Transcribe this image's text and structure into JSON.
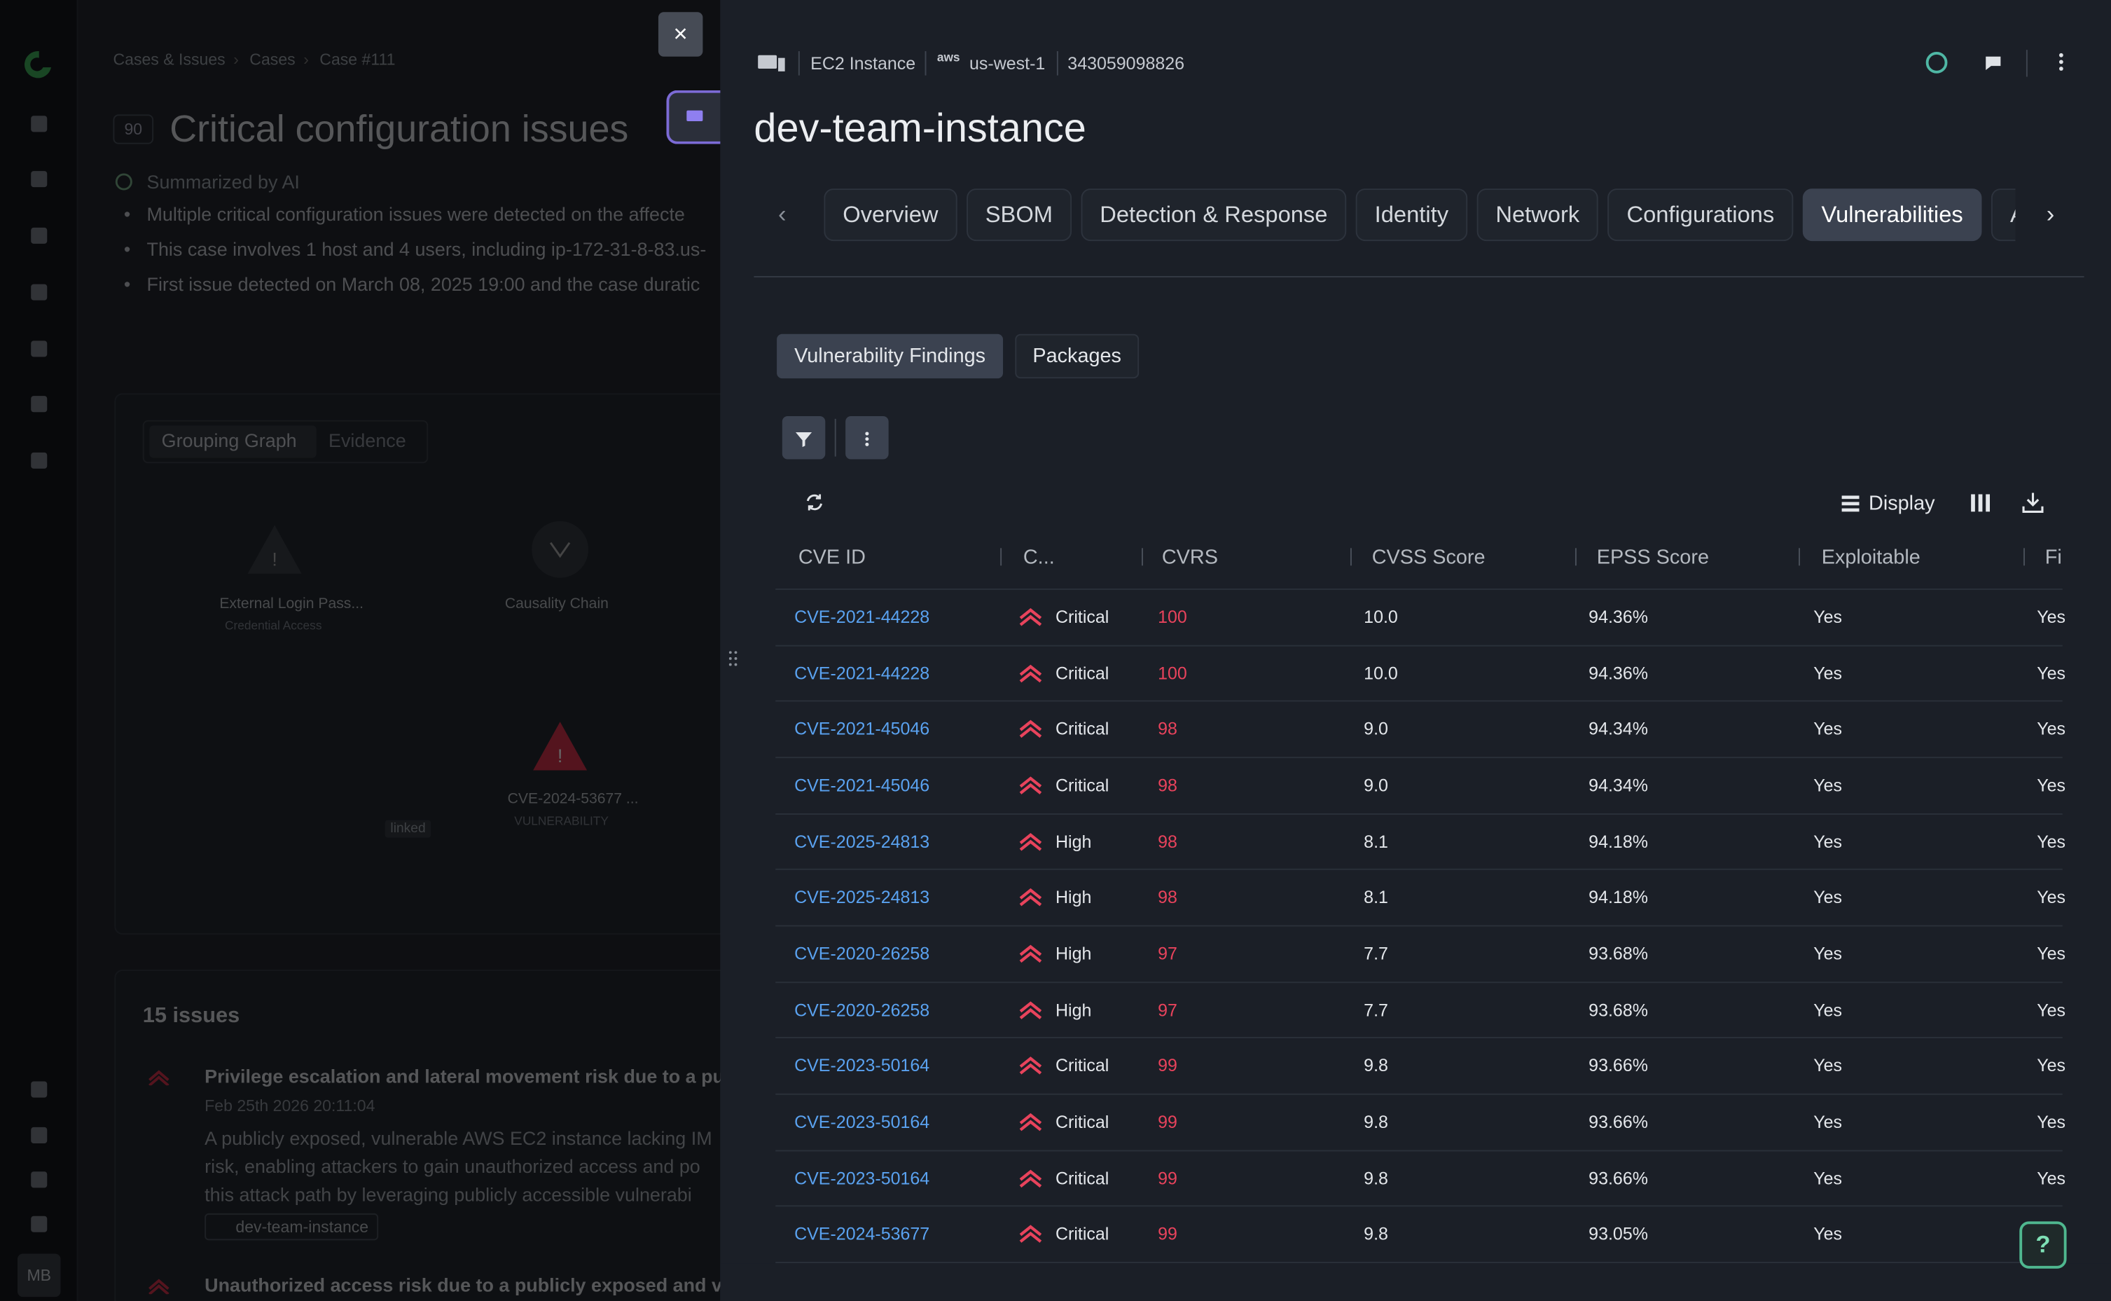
{
  "sidebar": {
    "avatar": "MB"
  },
  "background_case": {
    "breadcrumb": [
      "Cases & Issues",
      "Cases",
      "Case #111"
    ],
    "score": "90",
    "title": "Critical configuration issues",
    "summary_label": "Summarized by AI",
    "bullets": [
      "Multiple critical configuration issues were detected on the affecte",
      "This case involves 1 host and 4 users, including ip-172-31-8-83.us-",
      "First issue detected on March 08, 2025 19:00 and the case duratic"
    ],
    "tabs": [
      "Grouping Graph",
      "Evidence"
    ],
    "graph_nodes": [
      {
        "label": "External Login Pass...",
        "sublabel": "Credential Access"
      },
      {
        "label": "Causality Chain"
      },
      {
        "label": "CVE-2024-53677 ...",
        "sublabel": "VULNERABILITY"
      }
    ],
    "edge_label": "linked",
    "issues_count": "15 issues",
    "issues": [
      {
        "title": "Privilege escalation and lateral movement risk due to a pub",
        "date": "Feb 25th 2026 20:11:04",
        "description": [
          "A publicly exposed, vulnerable AWS EC2 instance lacking IM",
          "risk, enabling attackers to gain unauthorized access and po",
          "this attack path by leveraging publicly accessible vulnerabi"
        ],
        "tag": "dev-team-instance"
      },
      {
        "title": "Unauthorized access risk due to a publicly exposed and vu"
      }
    ]
  },
  "panel": {
    "resource_type": "EC2 Instance",
    "provider": "aws",
    "region": "us-west-1",
    "account": "343059098826",
    "name": "dev-team-instance",
    "tabs": [
      "Overview",
      "SBOM",
      "Detection & Response",
      "Identity",
      "Network",
      "Configurations",
      "Vulnerabilities",
      "A"
    ],
    "active_tab": 6,
    "subtabs": [
      "Vulnerability Findings",
      "Packages"
    ],
    "active_subtab": 0,
    "display_label": "Display"
  },
  "table": {
    "columns": [
      "CVE ID",
      "C...",
      "CVRS",
      "CVSS Score",
      "EPSS Score",
      "Exploitable",
      "Fi"
    ],
    "rows": [
      [
        "CVE-2021-44228",
        "Critical",
        "100",
        "10.0",
        "94.36%",
        "Yes",
        "Yes"
      ],
      [
        "CVE-2021-44228",
        "Critical",
        "100",
        "10.0",
        "94.36%",
        "Yes",
        "Yes"
      ],
      [
        "CVE-2021-45046",
        "Critical",
        "98",
        "9.0",
        "94.34%",
        "Yes",
        "Yes"
      ],
      [
        "CVE-2021-45046",
        "Critical",
        "98",
        "9.0",
        "94.34%",
        "Yes",
        "Yes"
      ],
      [
        "CVE-2025-24813",
        "High",
        "98",
        "8.1",
        "94.18%",
        "Yes",
        "Yes"
      ],
      [
        "CVE-2025-24813",
        "High",
        "98",
        "8.1",
        "94.18%",
        "Yes",
        "Yes"
      ],
      [
        "CVE-2020-26258",
        "High",
        "97",
        "7.7",
        "93.68%",
        "Yes",
        "Yes"
      ],
      [
        "CVE-2020-26258",
        "High",
        "97",
        "7.7",
        "93.68%",
        "Yes",
        "Yes"
      ],
      [
        "CVE-2023-50164",
        "Critical",
        "99",
        "9.8",
        "93.66%",
        "Yes",
        "Yes"
      ],
      [
        "CVE-2023-50164",
        "Critical",
        "99",
        "9.8",
        "93.66%",
        "Yes",
        "Yes"
      ],
      [
        "CVE-2023-50164",
        "Critical",
        "99",
        "9.8",
        "93.66%",
        "Yes",
        "Yes"
      ],
      [
        "CVE-2024-53677",
        "Critical",
        "99",
        "9.8",
        "93.05%",
        "Yes",
        ""
      ]
    ]
  }
}
